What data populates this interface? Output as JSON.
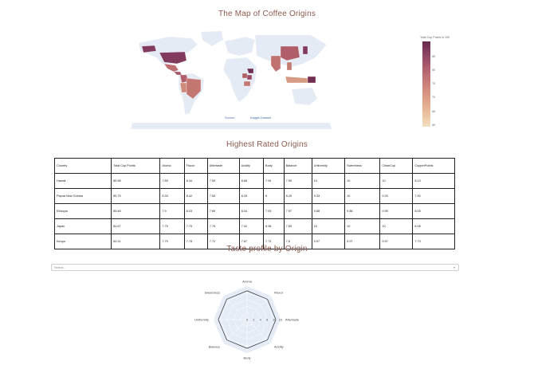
{
  "map": {
    "title": "The Map of Coffee Origins",
    "colorbar_title": "Total Cup Points in 100",
    "colorbar_ticks": [
      "85",
      "80",
      "75",
      "70",
      "65",
      "60"
    ],
    "links": {
      "source_label": "Source:",
      "dataset_label": "Kaggle Dataset"
    }
  },
  "table": {
    "title": "Highest Rated Origins",
    "columns": [
      "Country",
      "Total Cup Points",
      "Aroma",
      "Flavor",
      "Aftertaste",
      "Acidity",
      "Body",
      "Balance",
      "Uniformity",
      "Sweetness",
      "CleanCup",
      "CupperPoints"
    ],
    "rows": [
      [
        "Hawaii",
        "85.98",
        "7.89",
        "8.34",
        "7.59",
        "8.66",
        "7.94",
        "7.95",
        "10",
        "10",
        "10",
        "8.13"
      ],
      [
        "Papua New Guinea",
        "85.75",
        "8.33",
        "8.42",
        "7.83",
        "8.33",
        "8",
        "8.25",
        "9.33",
        "10",
        "9.33",
        "7.92"
      ],
      [
        "Ethiopia",
        "85.48",
        "7.9",
        "8.03",
        "7.89",
        "8.04",
        "7.93",
        "7.97",
        "9.88",
        "9.86",
        "9.95",
        "8.05"
      ],
      [
        "Japan",
        "84.67",
        "7.75",
        "7.75",
        "7.75",
        "7.42",
        "8.08",
        "7.83",
        "10",
        "10",
        "10",
        "8.08"
      ],
      [
        "Kenya",
        "84.31",
        "7.79",
        "7.78",
        "7.72",
        "7.87",
        "7.73",
        "7.8",
        "9.97",
        "9.97",
        "9.97",
        "7.73"
      ]
    ]
  },
  "taste": {
    "title": "Taste profile by Origin",
    "select_placeholder": "Select...",
    "axes": [
      "Aroma",
      "Flavor",
      "Aftertaste",
      "Acidity",
      "Body",
      "Balance",
      "Uniformity",
      "Sweetness"
    ],
    "radial_ticks": [
      "0",
      "2",
      "4",
      "6",
      "8",
      "10"
    ],
    "radial_range": [
      0,
      10
    ],
    "profile_values": [
      8.6,
      8.6,
      8.6,
      8.6,
      8.6,
      8.6,
      8.6,
      8.6
    ]
  },
  "chart_data": {
    "type": "radar",
    "title": "Taste profile by Origin",
    "categories": [
      "Aroma",
      "Flavor",
      "Aftertaste",
      "Acidity",
      "Body",
      "Balance",
      "Uniformity",
      "Sweetness"
    ],
    "values": [
      8.6,
      8.6,
      8.6,
      8.6,
      8.6,
      8.6,
      8.6,
      8.6
    ],
    "rlim": [
      0,
      10
    ]
  },
  "colors": {
    "title": "#8c5a4e",
    "land": "#e4ebf5",
    "radar_bg": "#e5ecf6",
    "choropleth_dark": "#672a4c",
    "choropleth_light": "#f2e0c2"
  }
}
